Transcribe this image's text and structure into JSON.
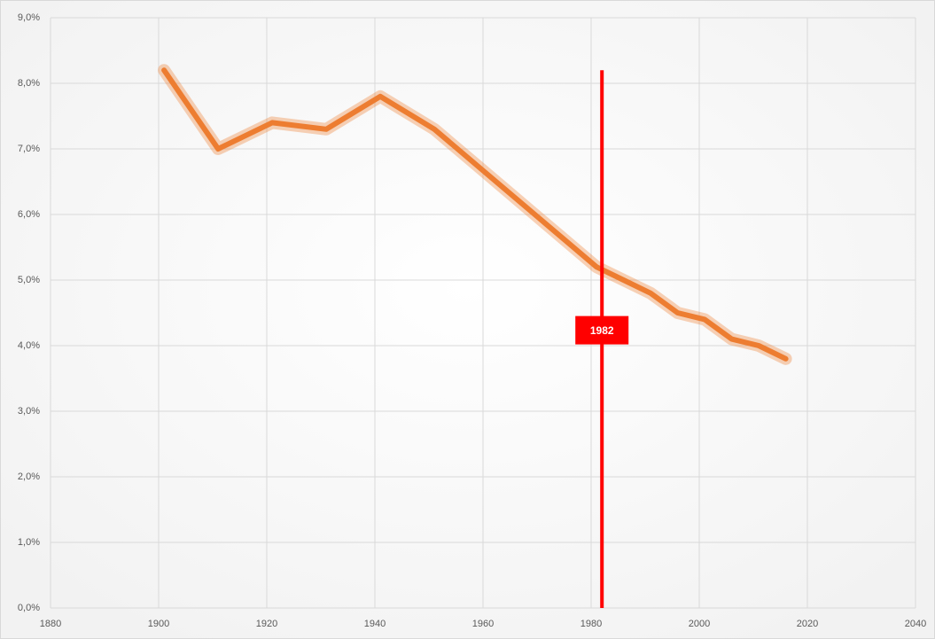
{
  "chart_data": {
    "type": "line",
    "x": [
      1901,
      1911,
      1921,
      1931,
      1941,
      1951,
      1961,
      1971,
      1981,
      1986,
      1991,
      1996,
      2001,
      2006,
      2011,
      2016
    ],
    "series": [
      {
        "color": "#ed7d31",
        "values": [
          8.2,
          7.0,
          7.4,
          7.3,
          7.8,
          7.3,
          6.6,
          5.9,
          5.2,
          5.0,
          4.8,
          4.5,
          4.4,
          4.1,
          4.0,
          3.8
        ]
      }
    ],
    "xlim": [
      1880,
      2040
    ],
    "xticks": [
      1880,
      1900,
      1920,
      1940,
      1960,
      1980,
      2000,
      2020,
      2040
    ],
    "ylim": [
      0,
      9
    ],
    "yticks": [
      {
        "value": 0,
        "label": "0,0%"
      },
      {
        "value": 1,
        "label": "1,0%"
      },
      {
        "value": 2,
        "label": "2,0%"
      },
      {
        "value": 3,
        "label": "3,0%"
      },
      {
        "value": 4,
        "label": "4,0%"
      },
      {
        "value": 5,
        "label": "5,0%"
      },
      {
        "value": 6,
        "label": "6,0%"
      },
      {
        "value": 7,
        "label": "7,0%"
      },
      {
        "value": 8,
        "label": "8,0%"
      },
      {
        "value": 9,
        "label": "9,0%"
      }
    ],
    "grid": true,
    "annotation": {
      "x": 1982,
      "y_range": [
        0,
        8.2
      ],
      "label": "1982",
      "color": "#ff0000"
    }
  }
}
